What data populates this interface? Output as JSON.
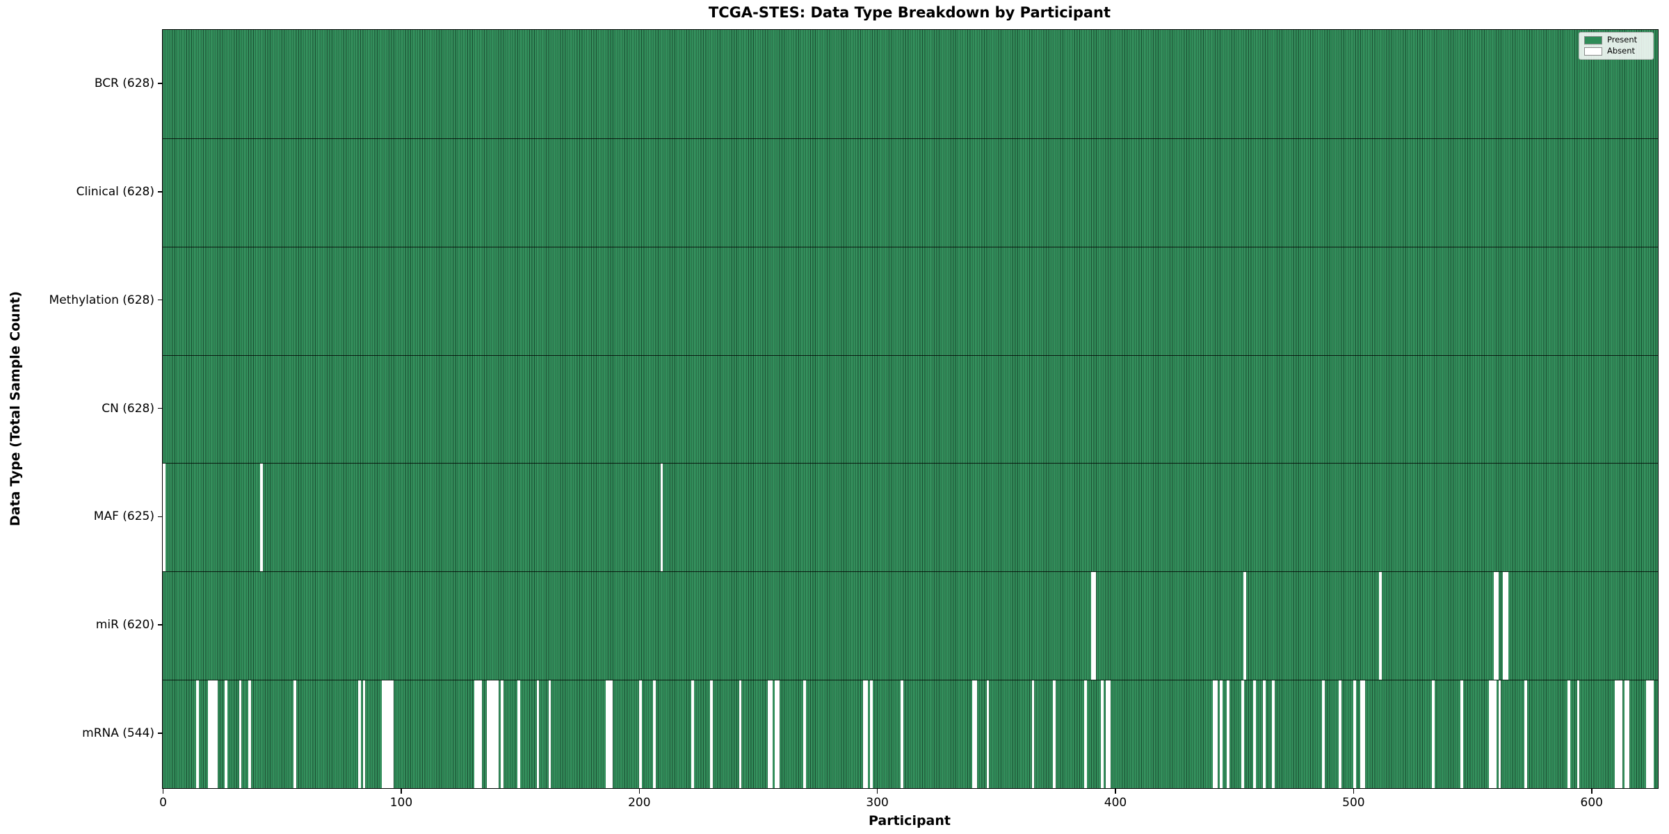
{
  "title": "TCGA-STES: Data Type Breakdown by Participant",
  "axes": {
    "x_label": "Participant",
    "y_label": "Data Type (Total Sample Count)",
    "x_ticks": [
      0,
      100,
      200,
      300,
      400,
      500,
      600
    ]
  },
  "legend": {
    "items": [
      {
        "label": "Present",
        "swatch": "present-swatch",
        "color": "#2e8b57"
      },
      {
        "label": "Absent",
        "swatch": "absent-swatch",
        "color": "#ffffff"
      }
    ]
  },
  "colors": {
    "present": "#2e8b57",
    "absent": "#ffffff",
    "bar_edge": "#0c2e1c",
    "axis": "#000000"
  },
  "chart_data": {
    "type": "heatmap",
    "title": "TCGA-STES: Data Type Breakdown by Participant",
    "xlabel": "Participant",
    "ylabel": "Data Type (Total Sample Count)",
    "x_range": [
      0,
      628
    ],
    "n_participants": 628,
    "grid": false,
    "legend_position": "upper right",
    "legend_entries": [
      "Present",
      "Absent"
    ],
    "cell_values": {
      "present": 1,
      "absent": 0
    },
    "rows": [
      {
        "name": "BCR",
        "label": "BCR (628)",
        "present_count": 628,
        "absent_participants": []
      },
      {
        "name": "Clinical",
        "label": "Clinical (628)",
        "present_count": 628,
        "absent_participants": []
      },
      {
        "name": "Methylation",
        "label": "Methylation (628)",
        "present_count": 628,
        "absent_participants": []
      },
      {
        "name": "CN",
        "label": "CN (628)",
        "present_count": 628,
        "absent_participants": []
      },
      {
        "name": "MAF",
        "label": "MAF (625)",
        "present_count": 625,
        "absent_participants": [
          0,
          41,
          209
        ]
      },
      {
        "name": "miR",
        "label": "miR (620)",
        "present_count": 620,
        "absent_participants": [
          390,
          391,
          454,
          511,
          559,
          560,
          563,
          564
        ]
      },
      {
        "name": "mRNA",
        "label": "mRNA (544)",
        "present_count": 544,
        "absent_participants": [
          14,
          19,
          20,
          21,
          22,
          26,
          32,
          36,
          55,
          82,
          84,
          92,
          93,
          94,
          95,
          96,
          131,
          132,
          133,
          136,
          137,
          138,
          139,
          140,
          142,
          149,
          157,
          162,
          186,
          187,
          188,
          200,
          206,
          222,
          230,
          242,
          254,
          255,
          257,
          258,
          269,
          294,
          295,
          297,
          310,
          340,
          341,
          346,
          365,
          374,
          387,
          394,
          396,
          397,
          441,
          442,
          444,
          447,
          453,
          458,
          462,
          466,
          487,
          494,
          500,
          503,
          504,
          533,
          545,
          557,
          558,
          559,
          561,
          572,
          590,
          594,
          610,
          611,
          612,
          614,
          615,
          623,
          624,
          625
        ]
      }
    ]
  }
}
